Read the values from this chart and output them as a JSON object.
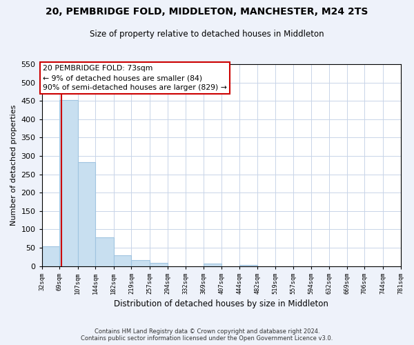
{
  "title": "20, PEMBRIDGE FOLD, MIDDLETON, MANCHESTER, M24 2TS",
  "subtitle": "Size of property relative to detached houses in Middleton",
  "xlabel": "Distribution of detached houses by size in Middleton",
  "ylabel": "Number of detached properties",
  "bin_edges": [
    32,
    69,
    107,
    144,
    182,
    219,
    257,
    294,
    332,
    369,
    407,
    444,
    482,
    519,
    557,
    594,
    632,
    669,
    706,
    744,
    781
  ],
  "bin_labels": [
    "32sqm",
    "69sqm",
    "107sqm",
    "144sqm",
    "182sqm",
    "219sqm",
    "257sqm",
    "294sqm",
    "332sqm",
    "369sqm",
    "407sqm",
    "444sqm",
    "482sqm",
    "519sqm",
    "557sqm",
    "594sqm",
    "632sqm",
    "669sqm",
    "706sqm",
    "744sqm",
    "781sqm"
  ],
  "bar_heights": [
    53,
    453,
    283,
    78,
    30,
    17,
    9,
    0,
    0,
    6,
    0,
    4,
    0,
    0,
    0,
    0,
    0,
    0,
    0,
    0
  ],
  "bar_color": "#c8dff0",
  "bar_edge_color": "#a0c4e0",
  "property_value": 73,
  "property_line_color": "#cc0000",
  "annotation_line1": "20 PEMBRIDGE FOLD: 73sqm",
  "annotation_line2": "← 9% of detached houses are smaller (84)",
  "annotation_line3": "90% of semi-detached houses are larger (829) →",
  "annotation_box_color": "white",
  "annotation_box_edge": "#cc0000",
  "ylim": [
    0,
    550
  ],
  "yticks": [
    0,
    50,
    100,
    150,
    200,
    250,
    300,
    350,
    400,
    450,
    500,
    550
  ],
  "footer_line1": "Contains HM Land Registry data © Crown copyright and database right 2024.",
  "footer_line2": "Contains public sector information licensed under the Open Government Licence v3.0.",
  "bg_color": "#eef2fa",
  "plot_bg_color": "#ffffff",
  "grid_color": "#c8d4e8"
}
